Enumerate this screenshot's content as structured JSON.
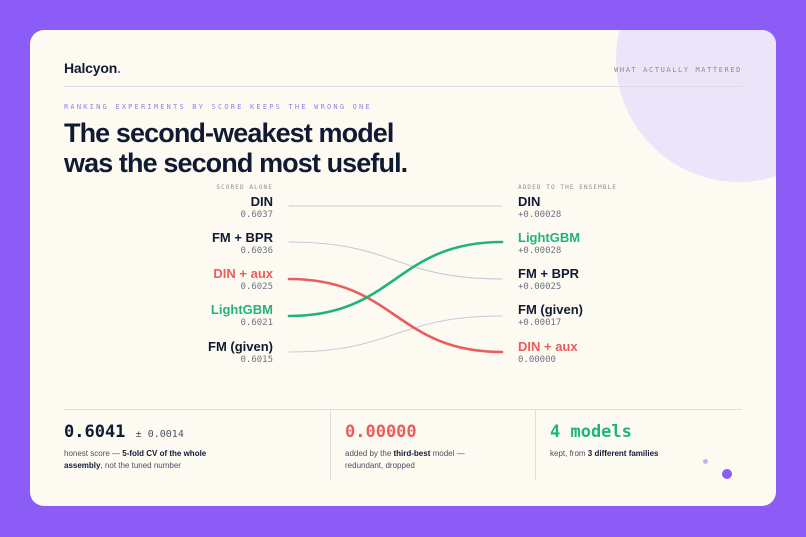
{
  "brand": {
    "name": "Halcyon",
    "dot": "."
  },
  "corner_label": "WHAT ACTUALLY MATTERED",
  "kicker": "RANKING EXPERIMENTS BY SCORE KEEPS THE WRONG ONE",
  "headline": {
    "line1": "The second-weakest model",
    "line2": "was the second most useful."
  },
  "left_header": "SCORED ALONE",
  "right_header": "ADDED TO THE ENSEMBLE",
  "left_items": [
    {
      "model": "DIN",
      "score": "0.6037",
      "color": "#111a33"
    },
    {
      "model": "FM + BPR",
      "score": "0.6036",
      "color": "#111a33"
    },
    {
      "model": "DIN + aux",
      "score": "0.6025",
      "color": "#e85d5d"
    },
    {
      "model": "LightGBM",
      "score": "0.6021",
      "color": "#1fb380"
    },
    {
      "model": "FM (given)",
      "score": "0.6015",
      "color": "#111a33"
    }
  ],
  "right_items": [
    {
      "model": "DIN",
      "gain": "+0.00028",
      "color": "#111a33"
    },
    {
      "model": "LightGBM",
      "gain": "+0.00028",
      "color": "#1fb380"
    },
    {
      "model": "FM + BPR",
      "gain": "+0.00025",
      "color": "#111a33"
    },
    {
      "model": "FM (given)",
      "gain": "+0.00017",
      "color": "#111a33"
    },
    {
      "model": "DIN + aux",
      "gain": "0.00000",
      "color": "#e85d5d"
    }
  ],
  "links": [
    {
      "from": 0,
      "to": 0,
      "color": "#c5cbd9",
      "emphasis": false
    },
    {
      "from": 1,
      "to": 2,
      "color": "#c5cbd9",
      "emphasis": false
    },
    {
      "from": 4,
      "to": 3,
      "color": "#c5cbd9",
      "emphasis": false
    },
    {
      "from": 2,
      "to": 4,
      "color": "#e85d5d",
      "emphasis": true
    },
    {
      "from": 3,
      "to": 1,
      "color": "#1fb380",
      "emphasis": true
    }
  ],
  "stats": [
    {
      "value": "0.6041",
      "pm": "± 0.0014",
      "color": "#111a33",
      "caption_pre": "honest score — ",
      "caption_bold": "5-fold CV of the whole assembly",
      "caption_post": ", not the tuned number"
    },
    {
      "value": "0.00000",
      "pm": "",
      "color": "#e85d5d",
      "caption_pre": "added by the ",
      "caption_bold": "third-best",
      "caption_post": " model — redundant, dropped"
    },
    {
      "value": "4 models",
      "pm": "",
      "color": "#1fb380",
      "caption_pre": "kept, from ",
      "caption_bold": "3 different families",
      "caption_post": ""
    }
  ]
}
